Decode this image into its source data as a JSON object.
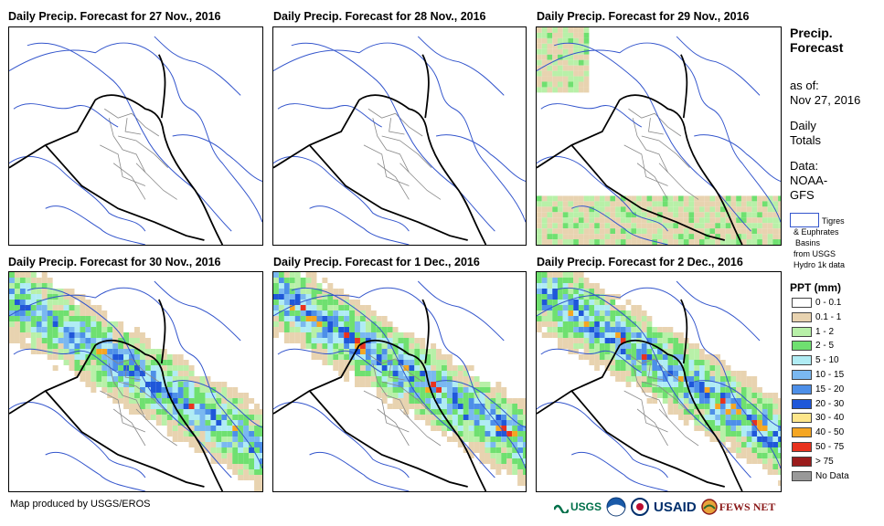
{
  "panels": [
    {
      "title": "Daily Precip. Forecast for 27 Nov., 2016",
      "intensity": 0.0
    },
    {
      "title": "Daily Precip. Forecast for 28 Nov., 2016",
      "intensity": 0.0
    },
    {
      "title": "Daily Precip. Forecast for 29 Nov., 2016",
      "intensity": 0.15
    },
    {
      "title": "Daily Precip. Forecast for 30 Nov., 2016",
      "intensity": 0.8
    },
    {
      "title": "Daily Precip. Forecast for 1 Dec., 2016",
      "intensity": 0.85
    },
    {
      "title": "Daily Precip. Forecast for 2 Dec., 2016",
      "intensity": 0.85
    }
  ],
  "legend": {
    "title_line1": "Precip.",
    "title_line2": "Forecast",
    "as_of_label": "as of:",
    "as_of_date": "Nov 27, 2016",
    "totals_line1": "Daily",
    "totals_line2": "Totals",
    "data_line1": "Data:",
    "data_line2": "NOAA-",
    "data_line3": "GFS",
    "basin_line1": "Tigres",
    "basin_line2": "& Euphrates",
    "basin_line3": "Basins",
    "basin_line4": "from USGS",
    "basin_line5": "Hydro 1k data",
    "ppt_title": "PPT (mm)",
    "ppt_classes": [
      {
        "label": "0 - 0.1",
        "color": "#ffffff"
      },
      {
        "label": "0.1 - 1",
        "color": "#e8d3b0"
      },
      {
        "label": "1 - 2",
        "color": "#b8f0a8"
      },
      {
        "label": "2 - 5",
        "color": "#6fe070"
      },
      {
        "label": "5 - 10",
        "color": "#b0ecf4"
      },
      {
        "label": "10 - 15",
        "color": "#7ab8f0"
      },
      {
        "label": "15 - 20",
        "color": "#4d8fe8"
      },
      {
        "label": "20 - 30",
        "color": "#1f57d9"
      },
      {
        "label": "30 - 40",
        "color": "#fde68a"
      },
      {
        "label": "40 - 50",
        "color": "#f5a623"
      },
      {
        "label": "50 - 75",
        "color": "#e8321e"
      },
      {
        "label": "> 75",
        "color": "#9b1c1c"
      },
      {
        "label": "No Data",
        "color": "#999999"
      }
    ]
  },
  "credit": "Map produced by USGS/EROS",
  "logos": {
    "usgs": "USGS",
    "usaid": "USAID",
    "fewsnet": "FEWS NET"
  },
  "colors": {
    "basin": "#3355cc",
    "border": "#000000",
    "admin": "#888888"
  }
}
